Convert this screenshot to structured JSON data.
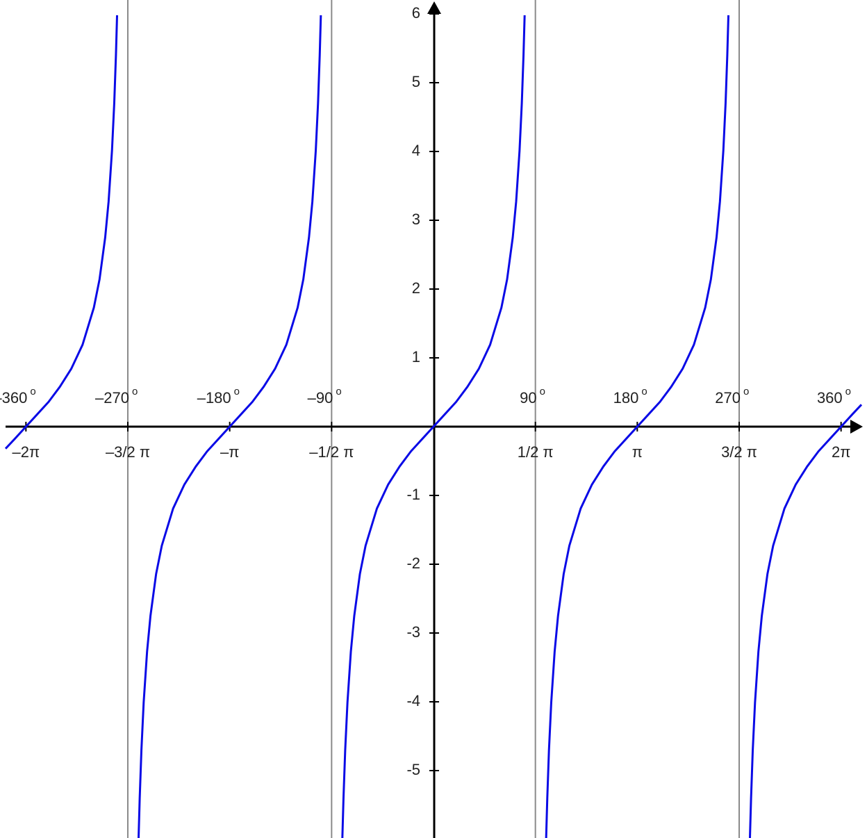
{
  "chart_data": {
    "type": "line",
    "color": "#0a0ae6",
    "xlim": [
      -378,
      378
    ],
    "ylim": [
      -6,
      6
    ],
    "xticks": [
      {
        "value": -360,
        "label": "–2π"
      },
      {
        "value": -270,
        "label": "–3/2 π"
      },
      {
        "value": -180,
        "label": "–π"
      },
      {
        "value": -90,
        "label": "–1/2 π"
      },
      {
        "value": 90,
        "label": "1/2 π"
      },
      {
        "value": 180,
        "label": "π"
      },
      {
        "value": 270,
        "label": "3/2 π"
      },
      {
        "value": 360,
        "label": "2π"
      }
    ],
    "degree_ticks": [
      {
        "value": -360,
        "label": "–360"
      },
      {
        "value": -270,
        "label": "–270"
      },
      {
        "value": -180,
        "label": "–180"
      },
      {
        "value": -90,
        "label": "–90"
      },
      {
        "value": 90,
        "label": "90"
      },
      {
        "value": 180,
        "label": "180"
      },
      {
        "value": 270,
        "label": "270"
      },
      {
        "value": 360,
        "label": "360"
      }
    ],
    "degree_mark": "o",
    "yticks": [
      6,
      5,
      4,
      3,
      2,
      1,
      -1,
      -2,
      -3,
      -4,
      -5
    ],
    "asymptotes": [
      -270,
      -90,
      90,
      270
    ],
    "x": [
      -378,
      -370,
      -360,
      -350,
      -340,
      -330,
      -320,
      -310,
      -300,
      -295,
      -290,
      -287,
      -284,
      -282,
      -280.5,
      -279.5,
      null,
      -260.5,
      -259.5,
      -258,
      -256,
      -253,
      -250,
      -245,
      -240,
      -230,
      -220,
      -210,
      -200,
      -190,
      -180,
      -170,
      -160,
      -150,
      -140,
      -130,
      -120,
      -115,
      -110,
      -107,
      -104,
      -102,
      -100.5,
      -99.5,
      null,
      -80.5,
      -79.5,
      -78,
      -76,
      -73,
      -70,
      -65,
      -60,
      -50,
      -40,
      -30,
      -20,
      -10,
      0,
      10,
      20,
      30,
      40,
      50,
      60,
      65,
      70,
      73,
      76,
      78,
      79.5,
      80.5,
      null,
      99.5,
      100.5,
      102,
      104,
      107,
      110,
      115,
      120,
      130,
      140,
      150,
      160,
      170,
      180,
      190,
      200,
      210,
      220,
      230,
      240,
      245,
      250,
      253,
      256,
      258,
      259.5,
      260.5,
      null,
      279.5,
      280.5,
      282,
      284,
      287,
      290,
      295,
      300,
      310,
      320,
      330,
      340,
      350,
      360,
      370,
      378
    ],
    "values": [
      -0.32,
      -0.18,
      0,
      0.18,
      0.36,
      0.58,
      0.84,
      1.19,
      1.73,
      2.14,
      2.75,
      3.27,
      4.01,
      4.7,
      5.4,
      5.98,
      null,
      -5.98,
      -5.4,
      -4.7,
      -4.01,
      -3.27,
      -2.75,
      -2.14,
      -1.73,
      -1.19,
      -0.84,
      -0.58,
      -0.36,
      -0.18,
      0,
      0.18,
      0.36,
      0.58,
      0.84,
      1.19,
      1.73,
      2.14,
      2.75,
      3.27,
      4.01,
      4.7,
      5.4,
      5.98,
      null,
      -5.98,
      -5.4,
      -4.7,
      -4.01,
      -3.27,
      -2.75,
      -2.14,
      -1.73,
      -1.19,
      -0.84,
      -0.58,
      -0.36,
      -0.18,
      0,
      0.18,
      0.36,
      0.58,
      0.84,
      1.19,
      1.73,
      2.14,
      2.75,
      3.27,
      4.01,
      4.7,
      5.4,
      5.98,
      null,
      -5.98,
      -5.4,
      -4.7,
      -4.01,
      -3.27,
      -2.75,
      -2.14,
      -1.73,
      -1.19,
      -0.84,
      -0.58,
      -0.36,
      -0.18,
      0,
      0.18,
      0.36,
      0.58,
      0.84,
      1.19,
      1.73,
      2.14,
      2.75,
      3.27,
      4.01,
      4.7,
      5.4,
      5.98,
      null,
      -5.98,
      -5.4,
      -4.7,
      -4.01,
      -3.27,
      -2.75,
      -2.14,
      -1.73,
      -1.19,
      -0.84,
      -0.58,
      -0.36,
      -0.18,
      0,
      0.18,
      0.32
    ]
  }
}
